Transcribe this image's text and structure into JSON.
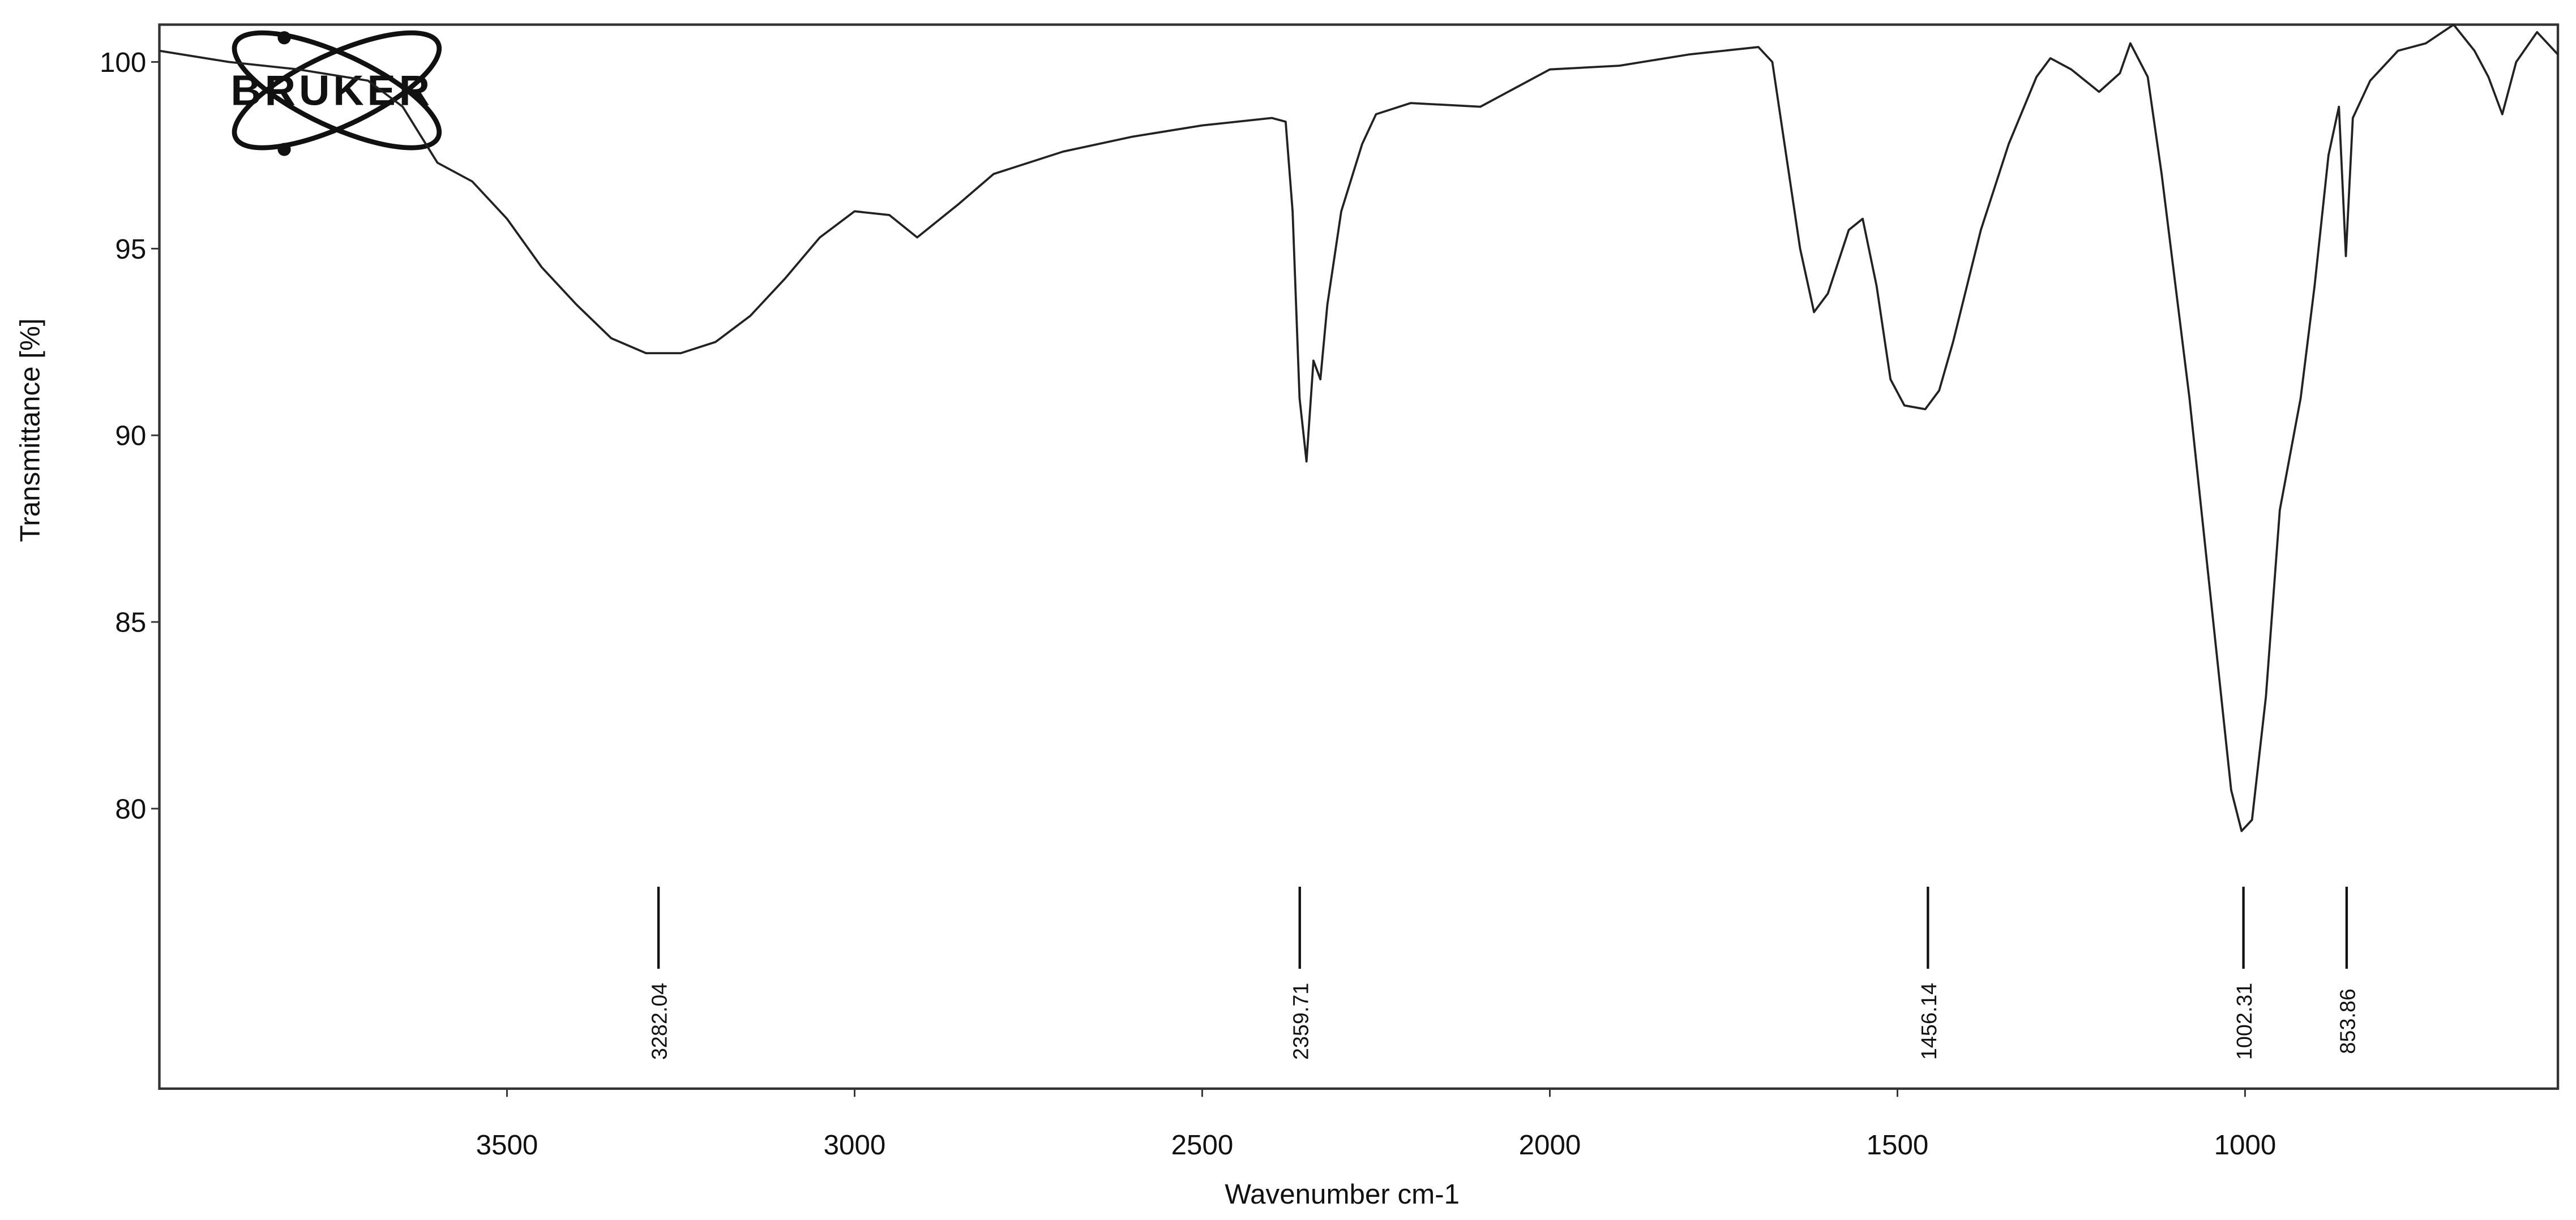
{
  "chart_data": {
    "type": "line",
    "logo": "BRUKER",
    "x_label": "Wavenumber cm-1",
    "y_label": "Transmittance [%]",
    "color": "#222222",
    "xlim": [
      4000,
      550
    ],
    "ylim": [
      72.5,
      101
    ],
    "xticks": [
      3500,
      3000,
      2500,
      2000,
      1500,
      1000
    ],
    "yticks": [
      80,
      85,
      90,
      95,
      100
    ],
    "peaks": [
      3282.04,
      2359.71,
      1456.14,
      1002.31,
      853.86
    ],
    "x": [
      4000,
      3900,
      3800,
      3700,
      3650,
      3600,
      3550,
      3500,
      3450,
      3400,
      3350,
      3300,
      3250,
      3200,
      3150,
      3100,
      3050,
      3000,
      2950,
      2910,
      2850,
      2800,
      2700,
      2600,
      2500,
      2400,
      2380,
      2370,
      2360,
      2350,
      2340,
      2330,
      2320,
      2300,
      2270,
      2250,
      2200,
      2100,
      2000,
      1900,
      1800,
      1700,
      1680,
      1660,
      1640,
      1620,
      1600,
      1570,
      1550,
      1530,
      1510,
      1490,
      1460,
      1440,
      1420,
      1380,
      1340,
      1300,
      1280,
      1250,
      1210,
      1180,
      1165,
      1140,
      1120,
      1080,
      1040,
      1020,
      1005,
      990,
      970,
      950,
      920,
      900,
      880,
      865,
      855,
      845,
      820,
      780,
      740,
      700,
      670,
      650,
      630,
      610,
      580,
      550
    ],
    "values": [
      100.3,
      100.0,
      99.8,
      99.5,
      98.8,
      97.3,
      96.8,
      95.8,
      94.5,
      93.5,
      92.6,
      92.2,
      92.2,
      92.5,
      93.2,
      94.2,
      95.3,
      96.0,
      95.9,
      95.3,
      96.2,
      97.0,
      97.6,
      98.0,
      98.3,
      98.5,
      98.4,
      96.0,
      91.0,
      89.3,
      92.0,
      91.5,
      93.5,
      96.0,
      97.8,
      98.6,
      98.9,
      98.8,
      99.8,
      99.9,
      100.2,
      100.4,
      100.0,
      97.5,
      95.0,
      93.3,
      93.8,
      95.5,
      95.8,
      94.0,
      91.5,
      90.8,
      90.7,
      91.2,
      92.5,
      95.5,
      97.8,
      99.6,
      100.1,
      99.8,
      99.2,
      99.7,
      100.5,
      99.6,
      97.0,
      91.0,
      84.0,
      80.5,
      79.4,
      79.7,
      83.0,
      88.0,
      91.0,
      94.0,
      97.5,
      98.8,
      94.8,
      98.5,
      99.5,
      100.3,
      100.5,
      101.0,
      100.3,
      99.6,
      98.6,
      100.0,
      100.8,
      100.2
    ]
  }
}
